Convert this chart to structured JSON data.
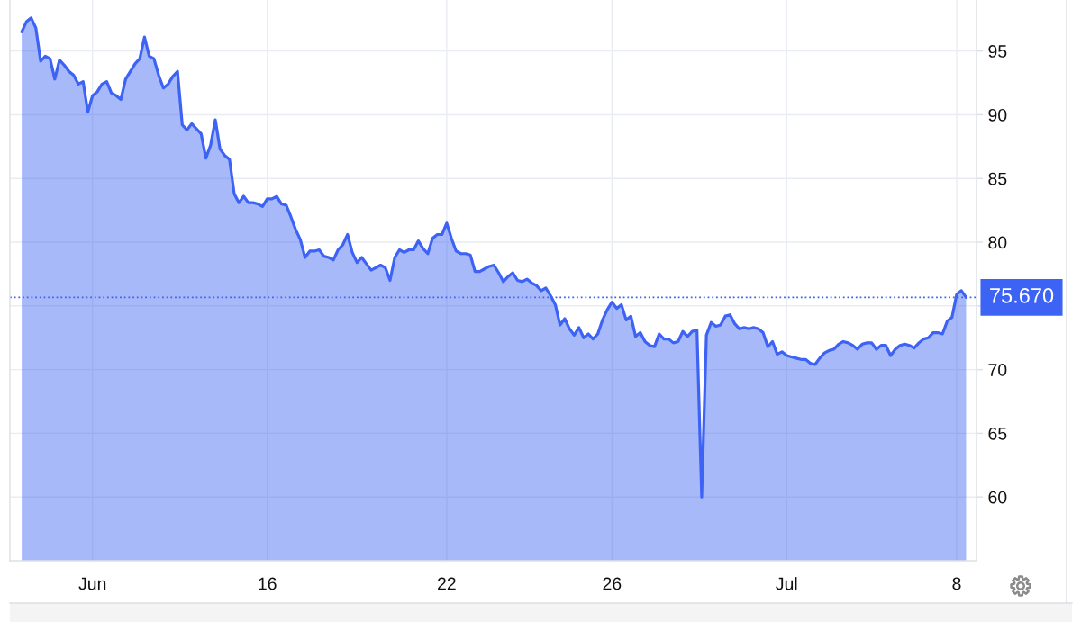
{
  "chart_data": {
    "type": "area",
    "categories": [
      null,
      null,
      null,
      null,
      null,
      null,
      null,
      null,
      null,
      null,
      null,
      null,
      null,
      null,
      null,
      "Jun",
      null,
      null,
      null,
      null,
      null,
      null,
      null,
      null,
      null,
      null,
      null,
      null,
      null,
      null,
      null,
      null,
      null,
      null,
      null,
      null,
      null,
      null,
      null,
      null,
      null,
      null,
      null,
      null,
      null,
      null,
      null,
      null,
      null,
      null,
      null,
      null,
      "16",
      null,
      null,
      null,
      null,
      null,
      null,
      null,
      null,
      null,
      null,
      null,
      null,
      null,
      null,
      null,
      null,
      null,
      null,
      null,
      null,
      null,
      null,
      null,
      null,
      null,
      null,
      null,
      null,
      null,
      null,
      null,
      null,
      null,
      null,
      null,
      null,
      null,
      "22",
      null,
      null,
      null,
      null,
      null,
      null,
      null,
      null,
      null,
      null,
      null,
      null,
      null,
      null,
      null,
      null,
      null,
      null,
      null,
      null,
      null,
      null,
      null,
      null,
      null,
      null,
      null,
      null,
      null,
      null,
      null,
      null,
      null,
      null,
      "26",
      null,
      null,
      null,
      null,
      null,
      null,
      null,
      null,
      null,
      null,
      null,
      null,
      null,
      null,
      null,
      null,
      null,
      null,
      null,
      null,
      null,
      null,
      null,
      null,
      null,
      null,
      null,
      null,
      null,
      null,
      null,
      null,
      null,
      null,
      null,
      null,
      "Jul",
      null,
      null,
      null,
      null,
      null,
      null,
      null,
      null,
      null,
      null,
      null,
      null,
      null,
      null,
      null,
      null,
      null,
      null,
      null,
      null,
      null,
      null,
      null,
      null,
      null,
      null,
      null,
      null,
      null,
      null,
      null,
      null,
      null,
      null,
      null,
      "8",
      null,
      null
    ],
    "values": [
      96.5,
      97.3,
      97.6,
      96.8,
      94.2,
      94.6,
      94.4,
      92.8,
      94.3,
      93.9,
      93.4,
      93.1,
      92.4,
      92.6,
      90.2,
      91.5,
      91.8,
      92.4,
      92.6,
      91.7,
      91.5,
      91.2,
      92.8,
      93.4,
      94.0,
      94.4,
      96.1,
      94.6,
      94.4,
      93.1,
      92.1,
      92.4,
      93.0,
      93.4,
      89.2,
      88.8,
      89.3,
      88.9,
      88.5,
      86.6,
      87.6,
      89.6,
      87.3,
      86.8,
      86.5,
      83.8,
      83.1,
      83.6,
      83.1,
      83.1,
      83.0,
      82.8,
      83.4,
      83.4,
      83.6,
      83.0,
      82.9,
      82.0,
      81.0,
      80.2,
      78.8,
      79.3,
      79.3,
      79.4,
      78.9,
      78.8,
      78.6,
      79.4,
      79.8,
      80.6,
      79.2,
      78.4,
      78.8,
      78.3,
      77.8,
      78.0,
      78.2,
      78.0,
      77.0,
      78.8,
      79.4,
      79.2,
      79.4,
      79.4,
      80.1,
      79.5,
      79.1,
      80.3,
      80.6,
      80.6,
      81.5,
      80.3,
      79.3,
      79.1,
      79.1,
      79.0,
      77.7,
      77.7,
      77.9,
      78.1,
      78.2,
      77.6,
      76.9,
      77.3,
      77.6,
      77.0,
      76.9,
      77.1,
      76.8,
      76.6,
      76.2,
      76.4,
      75.8,
      75.1,
      73.5,
      74.0,
      73.2,
      72.7,
      73.3,
      72.5,
      72.8,
      72.4,
      72.8,
      73.9,
      74.7,
      75.3,
      74.8,
      75.1,
      73.9,
      74.2,
      72.6,
      72.9,
      72.2,
      71.9,
      71.8,
      72.8,
      72.4,
      72.4,
      72.1,
      72.2,
      73.0,
      72.6,
      73.0,
      73.1,
      60.0,
      72.7,
      73.7,
      73.4,
      73.5,
      74.2,
      74.3,
      73.6,
      73.2,
      73.3,
      73.2,
      73.3,
      73.2,
      72.9,
      71.8,
      72.2,
      71.2,
      71.4,
      71.1,
      71.0,
      70.9,
      70.8,
      70.8,
      70.5,
      70.4,
      70.9,
      71.3,
      71.5,
      71.6,
      72.0,
      72.2,
      72.1,
      71.9,
      71.6,
      72.0,
      72.1,
      72.1,
      71.6,
      71.9,
      71.9,
      71.1,
      71.6,
      71.9,
      72.0,
      71.9,
      71.7,
      72.1,
      72.4,
      72.5,
      72.9,
      72.9,
      72.8,
      73.8,
      74.1,
      75.9,
      76.2,
      75.67
    ],
    "color": "#3d63f4",
    "ylim": [
      55,
      99
    ],
    "yticks": [
      60,
      65,
      70,
      {
        "value": 75,
        "label": null
      },
      80,
      85,
      90,
      95
    ],
    "ref_lines": [
      {
        "axis": "y",
        "value": 75.67,
        "label": "75.670",
        "color": "#3d63f4",
        "line_style": "dotted"
      }
    ],
    "grid": true
  }
}
